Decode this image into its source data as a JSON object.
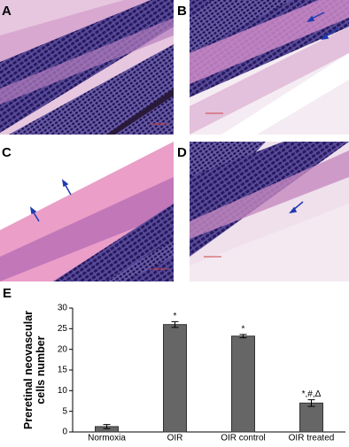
{
  "panels": [
    "A",
    "B",
    "C",
    "D"
  ],
  "chart_label": "E",
  "chart_data": {
    "type": "bar",
    "ylabel": "Preretinal neovascular cells number",
    "categories": [
      "Normoxia",
      "OIR",
      "OIR control",
      "OIR treated"
    ],
    "values": [
      1.3,
      26,
      23.2,
      7
    ],
    "errors": [
      0.5,
      0.7,
      0.4,
      0.8
    ],
    "annotations": [
      null,
      "*",
      "*",
      "*,#,Δ"
    ],
    "color": "#666666",
    "ylim": [
      0,
      30
    ],
    "yticks": [
      0,
      5,
      10,
      15,
      20,
      25,
      30
    ],
    "grid": false
  }
}
